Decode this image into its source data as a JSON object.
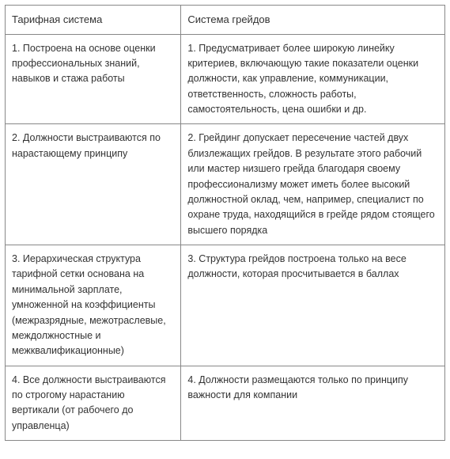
{
  "table": {
    "borderColor": "#888888",
    "background": "#ffffff",
    "textColor": "#333333",
    "fontSizeHeader": 13,
    "fontSizeBody": 12.5,
    "columns": [
      {
        "header": "Тарифная система",
        "widthPercent": 40
      },
      {
        "header": "Система грейдов",
        "widthPercent": 60
      }
    ],
    "rows": [
      {
        "left": "1. Построена на основе оценки профессиональных знаний, навыков и стажа работы",
        "right": "1. Предусматривает более широкую линейку критериев, включающую такие показатели оценки должности, как управление, коммуникации, ответственность, сложность работы, самостоятельность, цена ошибки и др."
      },
      {
        "left": "2. Должности выстраиваются по нарастающему принципу",
        "right": "2. Грейдинг допускает пересечение частей двух близлежащих грейдов. В результате этого рабочий или мастер низшего грейда благодаря своему профессионализму может иметь более высокий должностной оклад, чем, например, специалист по охране труда, находящийся в грейде рядом стоящего высшего порядка"
      },
      {
        "left": "3. Иерархическая структура тарифной сетки основана на минимальной зарплате, умноженной на коэффициенты (межразрядные, межотраслевые, междолжностные и межквалификационные)",
        "right": "3. Структура грейдов построена только на весе должности, которая просчитывается в баллах"
      },
      {
        "left": "4. Все должности выстраиваются по строгому нарастанию вертикали (от рабочего до управленца)",
        "right": "4. Должности размещаются только по принципу важности для компании"
      }
    ]
  }
}
